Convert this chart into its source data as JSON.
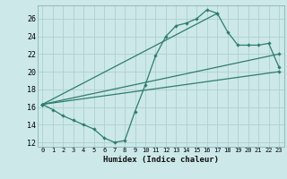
{
  "title": "",
  "xlabel": "Humidex (Indice chaleur)",
  "ylabel": "",
  "xlim": [
    -0.5,
    23.5
  ],
  "ylim": [
    11.5,
    27.5
  ],
  "xticks": [
    0,
    1,
    2,
    3,
    4,
    5,
    6,
    7,
    8,
    9,
    10,
    11,
    12,
    13,
    14,
    15,
    16,
    17,
    18,
    19,
    20,
    21,
    22,
    23
  ],
  "yticks": [
    12,
    14,
    16,
    18,
    20,
    22,
    24,
    26
  ],
  "bg_color": "#cce8e8",
  "grid_color": "#b0d0d0",
  "line_color": "#2e7d6e",
  "line1_x": [
    0,
    1,
    2,
    3,
    4,
    5,
    6,
    7,
    8,
    9,
    10,
    11,
    12,
    13,
    14,
    15,
    16,
    17
  ],
  "line1_y": [
    16.3,
    15.7,
    15.0,
    14.5,
    14.0,
    13.5,
    12.5,
    12.0,
    12.2,
    15.5,
    18.5,
    21.8,
    24.0,
    25.2,
    25.5,
    26.0,
    27.0,
    26.6
  ],
  "line2_x": [
    0,
    17,
    18,
    19,
    20,
    21,
    22,
    23
  ],
  "line2_y": [
    16.3,
    26.6,
    24.5,
    23.0,
    23.0,
    23.0,
    23.2,
    20.5
  ],
  "line3_x": [
    0,
    23
  ],
  "line3_y": [
    16.3,
    20.0
  ],
  "line4_x": [
    0,
    23
  ],
  "line4_y": [
    16.3,
    22.0
  ]
}
